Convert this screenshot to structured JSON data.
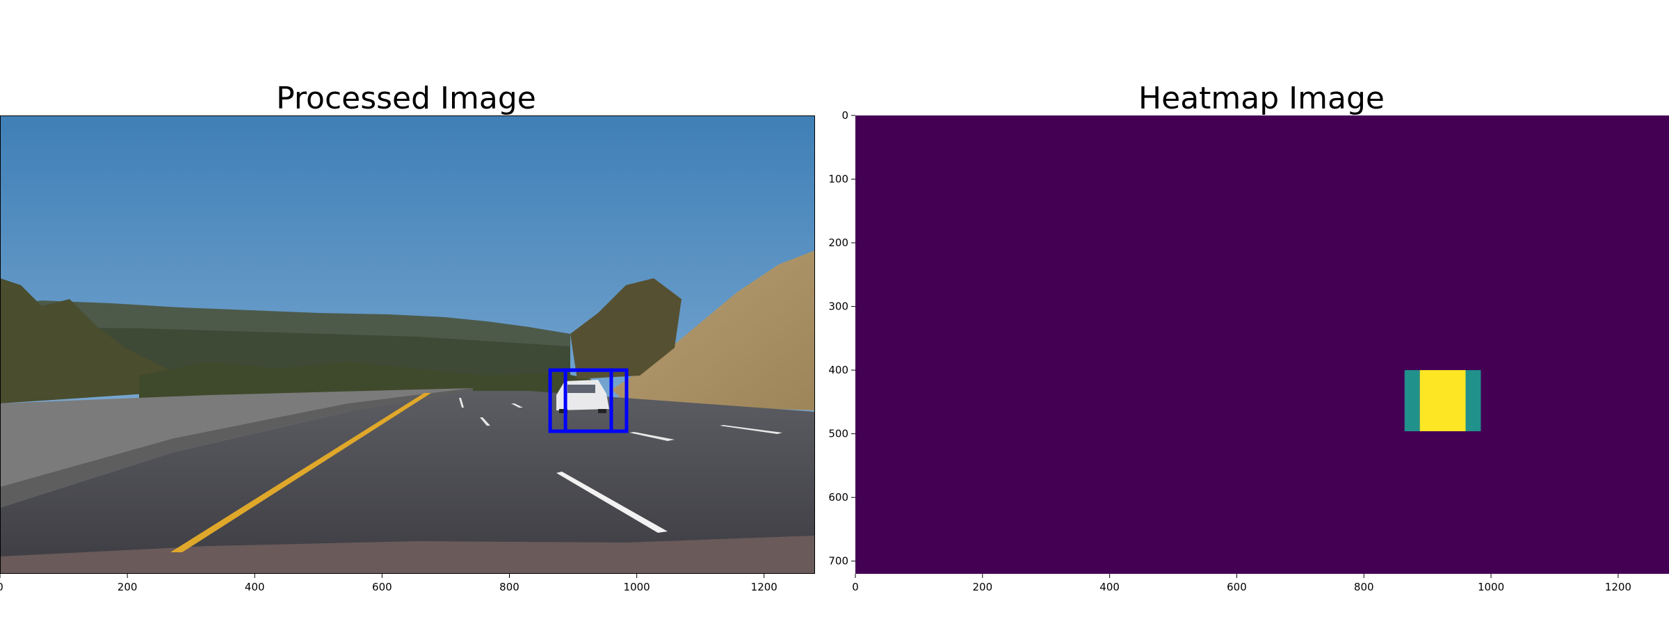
{
  "chart_data": [
    {
      "type": "image",
      "title": "Processed Image",
      "xlim": [
        0,
        1280
      ],
      "ylim": [
        720,
        0
      ],
      "xticks": [
        0,
        200,
        400,
        600,
        800,
        1000,
        1200
      ],
      "boxes": [
        {
          "x0": 864,
          "y0": 400,
          "x1": 960,
          "y1": 496,
          "color": "#0000ff"
        },
        {
          "x0": 888,
          "y0": 400,
          "x1": 984,
          "y1": 496,
          "color": "#0000ff"
        }
      ]
    },
    {
      "type": "heatmap",
      "title": "Heatmap Image",
      "xlim": [
        0,
        1280
      ],
      "ylim": [
        720,
        0
      ],
      "xticks": [
        0,
        200,
        400,
        600,
        800,
        1000,
        1200
      ],
      "yticks": [
        0,
        100,
        200,
        300,
        400,
        500,
        600,
        700
      ],
      "background_color": "#440154",
      "cells": [
        {
          "x0": 864,
          "y0": 400,
          "x1": 888,
          "y1": 496,
          "level": 1,
          "color": "#21918c"
        },
        {
          "x0": 888,
          "y0": 400,
          "x1": 960,
          "y1": 496,
          "level": 2,
          "color": "#fde725"
        },
        {
          "x0": 960,
          "y0": 400,
          "x1": 984,
          "y1": 496,
          "level": 1,
          "color": "#21918c"
        }
      ]
    }
  ]
}
